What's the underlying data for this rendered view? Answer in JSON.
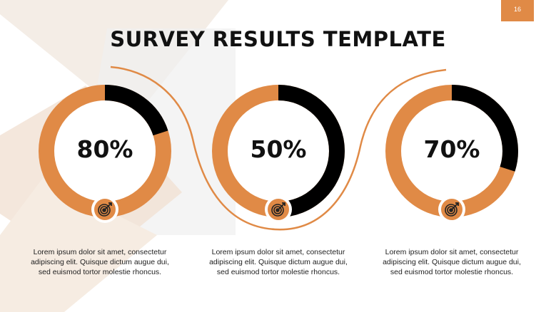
{
  "slide": {
    "page_number": "16",
    "title": "SURVEY RESULTS TEMPLATE"
  },
  "colors": {
    "accent": "#e08a46",
    "dark": "#000000",
    "text": "#111111"
  },
  "icons": {
    "metric_icon": "target-icon"
  },
  "metrics": [
    {
      "value_label": "80%",
      "value": 80,
      "description": "Lorem ipsum dolor sit amet, consectetur adipiscing elit. Quisque dictum augue dui, sed euismod tortor molestie rhoncus."
    },
    {
      "value_label": "50%",
      "value": 50,
      "description": "Lorem ipsum dolor sit amet, consectetur adipiscing elit. Quisque dictum augue dui, sed euismod tortor molestie rhoncus."
    },
    {
      "value_label": "70%",
      "value": 70,
      "description": "Lorem ipsum dolor sit amet, consectetur adipiscing elit. Quisque dictum augue dui, sed euismod tortor molestie rhoncus."
    }
  ]
}
